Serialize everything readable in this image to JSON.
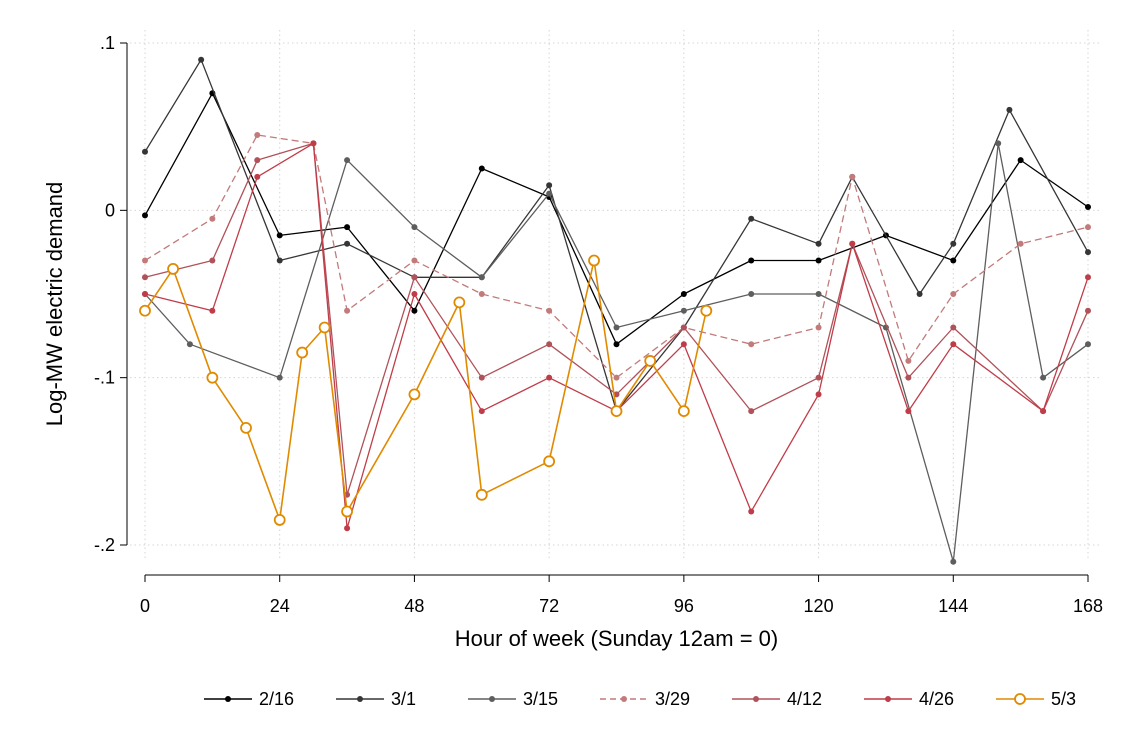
{
  "chart_data": {
    "type": "line",
    "xlabel": "Hour of week (Sunday 12am = 0)",
    "ylabel": "Log-MW electric demand",
    "xlim": [
      0,
      168
    ],
    "ylim": [
      -0.2,
      0.1
    ],
    "x_ticks": [
      0,
      24,
      48,
      72,
      96,
      120,
      144,
      168
    ],
    "x_tick_labels": [
      "0",
      "24",
      "48",
      "72",
      "96",
      "120",
      "144",
      "168"
    ],
    "y_ticks": [
      0.1,
      0,
      -0.1,
      -0.2
    ],
    "y_tick_labels": [
      ".1",
      "0",
      "-.1",
      "-.2"
    ],
    "grid": true,
    "legend_position": "bottom",
    "series": [
      {
        "name": "2/16",
        "color": "#000000",
        "dash": false,
        "marker": "dot",
        "points": [
          [
            0,
            -0.003
          ],
          [
            12,
            0.07
          ],
          [
            24,
            -0.015
          ],
          [
            36,
            -0.01
          ],
          [
            48,
            -0.06
          ],
          [
            60,
            0.025
          ],
          [
            72,
            0.008
          ],
          [
            84,
            -0.08
          ],
          [
            96,
            -0.05
          ],
          [
            108,
            -0.03
          ],
          [
            120,
            -0.03
          ],
          [
            132,
            -0.015
          ],
          [
            144,
            -0.03
          ],
          [
            156,
            0.03
          ],
          [
            168,
            0.002
          ]
        ]
      },
      {
        "name": "3/1",
        "color": "#363636",
        "dash": false,
        "marker": "dot",
        "points": [
          [
            0,
            0.035
          ],
          [
            10,
            0.09
          ],
          [
            24,
            -0.03
          ],
          [
            36,
            -0.02
          ],
          [
            48,
            -0.04
          ],
          [
            60,
            -0.04
          ],
          [
            72,
            0.015
          ],
          [
            84,
            -0.12
          ],
          [
            96,
            -0.07
          ],
          [
            108,
            -0.005
          ],
          [
            120,
            -0.02
          ],
          [
            126,
            0.02
          ],
          [
            138,
            -0.05
          ],
          [
            144,
            -0.02
          ],
          [
            154,
            0.06
          ],
          [
            168,
            -0.025
          ]
        ]
      },
      {
        "name": "3/15",
        "color": "#5e5e5e",
        "dash": false,
        "marker": "dot",
        "points": [
          [
            0,
            -0.05
          ],
          [
            8,
            -0.08
          ],
          [
            24,
            -0.1
          ],
          [
            36,
            0.03
          ],
          [
            48,
            -0.01
          ],
          [
            60,
            -0.04
          ],
          [
            72,
            0.01
          ],
          [
            84,
            -0.07
          ],
          [
            96,
            -0.06
          ],
          [
            108,
            -0.05
          ],
          [
            120,
            -0.05
          ],
          [
            132,
            -0.07
          ],
          [
            144,
            -0.21
          ],
          [
            152,
            0.04
          ],
          [
            160,
            -0.1
          ],
          [
            168,
            -0.08
          ]
        ]
      },
      {
        "name": "3/29",
        "color": "#c27a7a",
        "dash": true,
        "marker": "dot",
        "points": [
          [
            0,
            -0.03
          ],
          [
            12,
            -0.005
          ],
          [
            20,
            0.045
          ],
          [
            30,
            0.04
          ],
          [
            36,
            -0.06
          ],
          [
            48,
            -0.03
          ],
          [
            60,
            -0.05
          ],
          [
            72,
            -0.06
          ],
          [
            84,
            -0.1
          ],
          [
            96,
            -0.07
          ],
          [
            108,
            -0.08
          ],
          [
            120,
            -0.07
          ],
          [
            126,
            0.02
          ],
          [
            136,
            -0.09
          ],
          [
            144,
            -0.05
          ],
          [
            156,
            -0.02
          ],
          [
            168,
            -0.01
          ]
        ]
      },
      {
        "name": "4/12",
        "color": "#b0525a",
        "dash": false,
        "marker": "dot",
        "points": [
          [
            0,
            -0.04
          ],
          [
            12,
            -0.03
          ],
          [
            20,
            0.03
          ],
          [
            30,
            0.04
          ],
          [
            36,
            -0.17
          ],
          [
            48,
            -0.04
          ],
          [
            60,
            -0.1
          ],
          [
            72,
            -0.08
          ],
          [
            84,
            -0.11
          ],
          [
            96,
            -0.07
          ],
          [
            108,
            -0.12
          ],
          [
            120,
            -0.1
          ],
          [
            126,
            -0.02
          ],
          [
            136,
            -0.1
          ],
          [
            144,
            -0.07
          ],
          [
            160,
            -0.12
          ],
          [
            168,
            -0.06
          ]
        ]
      },
      {
        "name": "4/26",
        "color": "#c03c48",
        "dash": false,
        "marker": "dot",
        "points": [
          [
            0,
            -0.05
          ],
          [
            12,
            -0.06
          ],
          [
            20,
            0.02
          ],
          [
            30,
            0.04
          ],
          [
            36,
            -0.19
          ],
          [
            48,
            -0.05
          ],
          [
            60,
            -0.12
          ],
          [
            72,
            -0.1
          ],
          [
            84,
            -0.12
          ],
          [
            96,
            -0.08
          ],
          [
            108,
            -0.18
          ],
          [
            120,
            -0.11
          ],
          [
            126,
            -0.02
          ],
          [
            136,
            -0.12
          ],
          [
            144,
            -0.08
          ],
          [
            160,
            -0.12
          ],
          [
            168,
            -0.04
          ]
        ]
      },
      {
        "name": "5/3",
        "color": "#e08a00",
        "dash": false,
        "marker": "circle",
        "points": [
          [
            0,
            -0.06
          ],
          [
            5,
            -0.035
          ],
          [
            12,
            -0.1
          ],
          [
            18,
            -0.13
          ],
          [
            24,
            -0.185
          ],
          [
            28,
            -0.085
          ],
          [
            32,
            -0.07
          ],
          [
            36,
            -0.18
          ],
          [
            48,
            -0.11
          ],
          [
            56,
            -0.055
          ],
          [
            60,
            -0.17
          ],
          [
            72,
            -0.15
          ],
          [
            80,
            -0.03
          ],
          [
            84,
            -0.12
          ],
          [
            90,
            -0.09
          ],
          [
            96,
            -0.12
          ],
          [
            100,
            -0.06
          ]
        ]
      }
    ]
  }
}
